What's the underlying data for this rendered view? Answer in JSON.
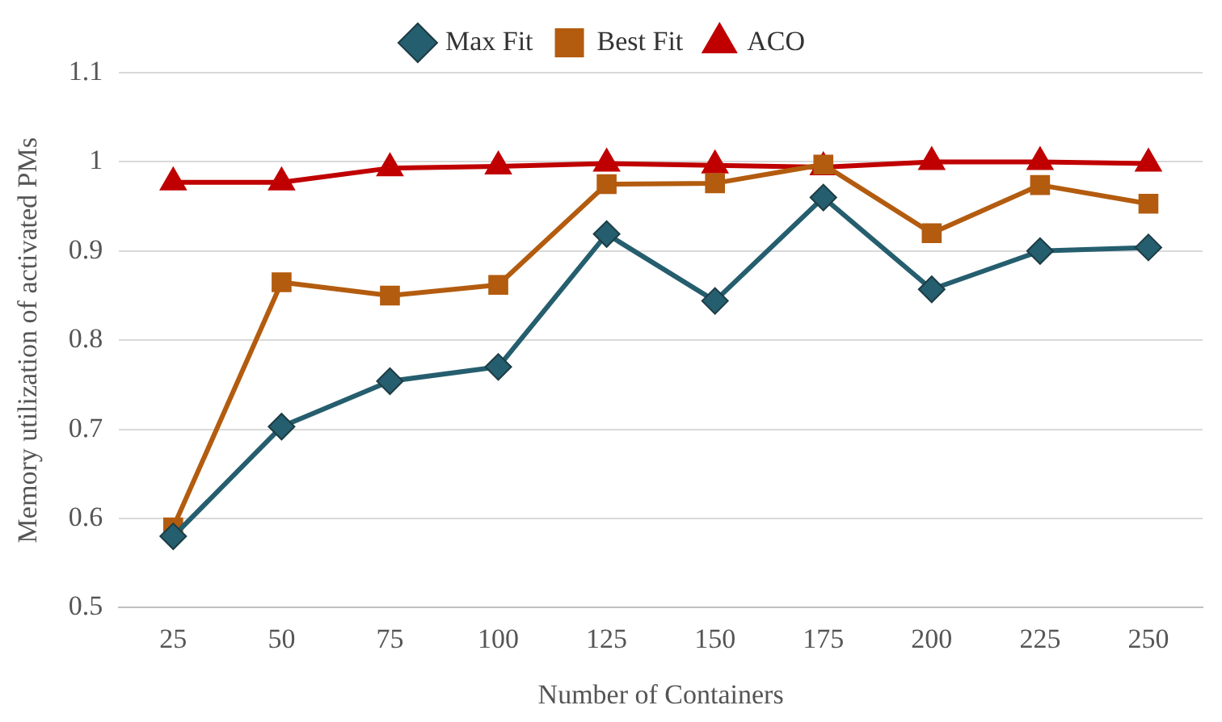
{
  "chart_data": {
    "type": "line",
    "xlabel": "Number of Containers",
    "ylabel": "Memory utilization of activated PMs",
    "categories": [
      "25",
      "50",
      "75",
      "100",
      "125",
      "150",
      "175",
      "200",
      "225",
      "250"
    ],
    "series": [
      {
        "name": "Max Fit",
        "color": "#255e6e",
        "marker": "diamond",
        "values": [
          0.58,
          0.703,
          0.754,
          0.77,
          0.919,
          0.844,
          0.96,
          0.857,
          0.9,
          0.904
        ]
      },
      {
        "name": "Best Fit",
        "color": "#b35c0f",
        "marker": "square",
        "values": [
          0.59,
          0.865,
          0.85,
          0.862,
          0.975,
          0.976,
          0.997,
          0.92,
          0.974,
          0.953
        ]
      },
      {
        "name": "ACO",
        "color": "#c00000",
        "marker": "triangle",
        "values": [
          0.977,
          0.977,
          0.993,
          0.995,
          0.998,
          0.996,
          0.994,
          1.0,
          1.0,
          0.998
        ]
      }
    ],
    "ylim": [
      0.5,
      1.1
    ],
    "yticks": [
      0.5,
      0.6,
      0.7,
      0.8,
      0.9,
      1,
      1.1
    ],
    "grid": "y",
    "legend": "top",
    "line_style": "solid"
  }
}
